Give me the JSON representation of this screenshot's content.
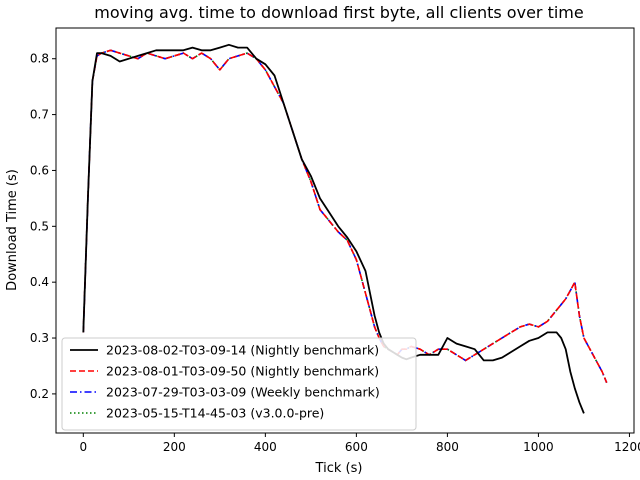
{
  "chart_data": {
    "type": "line",
    "title": "moving avg. time to download first byte, all clients over time",
    "xlabel": "Tick (s)",
    "ylabel": "Download Time (s)",
    "xlim": [
      -60,
      1210
    ],
    "ylim": [
      0.13,
      0.855
    ],
    "xticks": [
      0,
      200,
      400,
      600,
      800,
      1000,
      1200
    ],
    "yticks": [
      0.2,
      0.3,
      0.4,
      0.5,
      0.6,
      0.7,
      0.8
    ],
    "grid": false,
    "legend_position": "lower-left",
    "series": [
      {
        "name": "2023-08-02-T03-09-14 (Nightly benchmark)",
        "color": "#000000",
        "dash": "",
        "width": 1.8,
        "x": [
          0,
          10,
          20,
          30,
          40,
          60,
          80,
          100,
          120,
          140,
          160,
          180,
          200,
          220,
          240,
          260,
          280,
          300,
          320,
          340,
          360,
          380,
          400,
          420,
          440,
          460,
          480,
          500,
          520,
          540,
          560,
          580,
          600,
          620,
          640,
          650,
          660,
          670,
          680,
          690,
          700,
          710,
          720,
          740,
          760,
          780,
          800,
          820,
          840,
          860,
          880,
          900,
          920,
          940,
          960,
          980,
          1000,
          1020,
          1040,
          1050,
          1060,
          1070,
          1080,
          1090,
          1100
        ],
        "y": [
          0.31,
          0.55,
          0.76,
          0.81,
          0.81,
          0.805,
          0.795,
          0.8,
          0.805,
          0.81,
          0.815,
          0.815,
          0.815,
          0.815,
          0.82,
          0.815,
          0.815,
          0.82,
          0.825,
          0.82,
          0.82,
          0.8,
          0.79,
          0.77,
          0.72,
          0.67,
          0.62,
          0.59,
          0.55,
          0.525,
          0.5,
          0.48,
          0.455,
          0.42,
          0.34,
          0.31,
          0.29,
          0.28,
          0.275,
          0.27,
          0.265,
          0.262,
          0.265,
          0.27,
          0.27,
          0.27,
          0.3,
          0.29,
          0.285,
          0.28,
          0.26,
          0.26,
          0.265,
          0.275,
          0.285,
          0.295,
          0.3,
          0.31,
          0.31,
          0.3,
          0.28,
          0.24,
          0.21,
          0.185,
          0.165
        ]
      },
      {
        "name": "2023-08-01-T03-09-50 (Nightly benchmark)",
        "color": "#ff0000",
        "dash": "6,3",
        "width": 1.6,
        "x": [
          0,
          10,
          20,
          30,
          40,
          60,
          80,
          100,
          120,
          140,
          160,
          180,
          200,
          220,
          240,
          260,
          280,
          300,
          320,
          340,
          360,
          380,
          400,
          420,
          440,
          460,
          480,
          500,
          520,
          540,
          560,
          580,
          600,
          620,
          640,
          650,
          660,
          670,
          680,
          690,
          700,
          710,
          720,
          740,
          760,
          780,
          800,
          820,
          840,
          860,
          880,
          900,
          920,
          940,
          960,
          980,
          1000,
          1020,
          1040,
          1050,
          1060,
          1070,
          1080,
          1090,
          1100,
          1120,
          1140,
          1150
        ],
        "y": [
          0.31,
          0.55,
          0.76,
          0.805,
          0.81,
          0.815,
          0.81,
          0.805,
          0.8,
          0.81,
          0.805,
          0.8,
          0.805,
          0.81,
          0.8,
          0.81,
          0.8,
          0.78,
          0.8,
          0.805,
          0.81,
          0.8,
          0.78,
          0.75,
          0.72,
          0.67,
          0.62,
          0.58,
          0.53,
          0.51,
          0.49,
          0.475,
          0.44,
          0.38,
          0.32,
          0.3,
          0.285,
          0.28,
          0.275,
          0.27,
          0.28,
          0.28,
          0.285,
          0.28,
          0.27,
          0.28,
          0.28,
          0.27,
          0.26,
          0.27,
          0.28,
          0.29,
          0.3,
          0.31,
          0.32,
          0.325,
          0.32,
          0.33,
          0.35,
          0.36,
          0.37,
          0.385,
          0.4,
          0.34,
          0.3,
          0.27,
          0.24,
          0.22
        ]
      },
      {
        "name": "2023-07-29-T03-03-09 (Weekly benchmark)",
        "color": "#0000ff",
        "dash": "7,3,1.5,3",
        "width": 1.6,
        "x": [
          0,
          10,
          20,
          30,
          40,
          60,
          80,
          100,
          120,
          140,
          160,
          180,
          200,
          220,
          240,
          260,
          280,
          300,
          320,
          340,
          360,
          380,
          400,
          420,
          440,
          460,
          480,
          500,
          520,
          540,
          560,
          580,
          600,
          620,
          640,
          650,
          660,
          670,
          680,
          690,
          700,
          710,
          720,
          740,
          760,
          780,
          800,
          820,
          840,
          860,
          880,
          900,
          920,
          940,
          960,
          980,
          1000,
          1020,
          1040,
          1050,
          1060,
          1070,
          1080,
          1090,
          1100,
          1120,
          1140,
          1150
        ],
        "y": [
          0.31,
          0.55,
          0.76,
          0.805,
          0.81,
          0.815,
          0.81,
          0.805,
          0.8,
          0.81,
          0.805,
          0.8,
          0.805,
          0.81,
          0.8,
          0.81,
          0.8,
          0.78,
          0.8,
          0.805,
          0.81,
          0.8,
          0.78,
          0.75,
          0.72,
          0.67,
          0.62,
          0.58,
          0.53,
          0.51,
          0.49,
          0.475,
          0.44,
          0.38,
          0.32,
          0.3,
          0.285,
          0.28,
          0.275,
          0.27,
          0.28,
          0.28,
          0.285,
          0.28,
          0.27,
          0.28,
          0.28,
          0.27,
          0.26,
          0.27,
          0.28,
          0.29,
          0.3,
          0.31,
          0.32,
          0.325,
          0.32,
          0.33,
          0.35,
          0.36,
          0.37,
          0.385,
          0.4,
          0.34,
          0.3,
          0.27,
          0.24,
          0.22
        ]
      },
      {
        "name": "2023-05-15-T14-45-03 (v3.0.0-pre)",
        "color": "#008000",
        "dash": "1.5,2.5",
        "width": 1.6,
        "x": [
          0,
          10,
          20,
          30,
          40,
          60,
          80,
          100,
          120,
          140,
          160,
          180,
          200,
          220,
          240,
          260,
          280,
          300,
          320,
          340,
          360,
          380,
          400,
          420,
          440,
          460,
          480,
          500,
          520,
          540,
          560,
          580,
          600,
          620,
          640,
          650,
          660,
          670,
          680,
          690,
          700,
          710,
          720,
          740,
          760,
          780,
          800,
          820,
          840,
          860,
          880,
          900,
          920,
          940,
          960,
          980,
          1000,
          1020,
          1040,
          1050,
          1060,
          1070,
          1080,
          1090,
          1100,
          1120,
          1140,
          1150
        ],
        "y": [
          0.31,
          0.55,
          0.76,
          0.805,
          0.81,
          0.815,
          0.81,
          0.805,
          0.8,
          0.81,
          0.805,
          0.8,
          0.805,
          0.81,
          0.8,
          0.81,
          0.8,
          0.78,
          0.8,
          0.805,
          0.81,
          0.8,
          0.78,
          0.75,
          0.72,
          0.67,
          0.62,
          0.58,
          0.53,
          0.51,
          0.49,
          0.475,
          0.44,
          0.38,
          0.32,
          0.3,
          0.285,
          0.28,
          0.275,
          0.27,
          0.28,
          0.28,
          0.285,
          0.28,
          0.27,
          0.28,
          0.28,
          0.27,
          0.26,
          0.27,
          0.28,
          0.29,
          0.3,
          0.31,
          0.32,
          0.325,
          0.32,
          0.33,
          0.35,
          0.36,
          0.37,
          0.385,
          0.4,
          0.34,
          0.3,
          0.27,
          0.24,
          0.22
        ]
      }
    ]
  }
}
